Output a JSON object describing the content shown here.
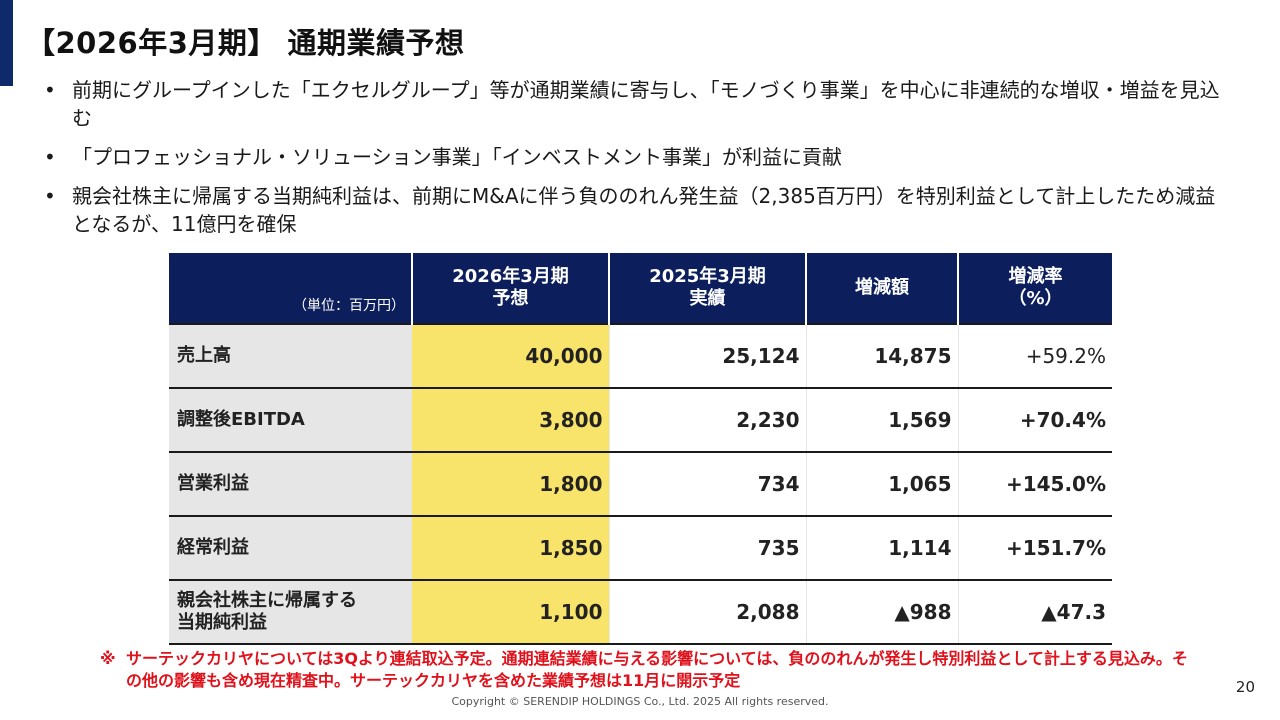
{
  "title": "【2026年3月期】 通期業績予想",
  "bullets": [
    "前期にグループインした「エクセルグループ」等が通期業績に寄与し、「モノづくり事業」を中心に非連続的な増収・増益を見込む",
    "「プロフェッショナル・ソリューション事業」「インベストメント事業」が利益に貢献",
    "親会社株主に帰属する当期純利益は、前期にM&Aに伴う負ののれん発生益（2,385百万円）を特別利益として計上したため減益となるが、11億円を確保"
  ],
  "table": {
    "unit": "（単位：百万円）",
    "headers": [
      "2026年3月期\n予想",
      "2025年3月期\n実績",
      "増減額",
      "増減率\n（%）"
    ],
    "rows": [
      {
        "label": "売上高",
        "forecast": "40,000",
        "actual": "25,124",
        "change": "14,875",
        "rate": "+59.2%"
      },
      {
        "label": "調整後EBITDA",
        "forecast": "3,800",
        "actual": "2,230",
        "change": "1,569",
        "rate": "+70.4%"
      },
      {
        "label": "営業利益",
        "forecast": "1,800",
        "actual": "734",
        "change": "1,065",
        "rate": "+145.0%"
      },
      {
        "label": "経常利益",
        "forecast": "1,850",
        "actual": "735",
        "change": "1,114",
        "rate": "+151.7%"
      },
      {
        "label": "親会社株主に帰属する\n当期純利益",
        "forecast": "1,100",
        "actual": "2,088",
        "change": "▲988",
        "rate": "▲47.3"
      }
    ]
  },
  "note": {
    "mark": "※",
    "text": "サーテックカリヤについては3Qより連結取込予定。通期連結業績に与える影響については、負ののれんが発生し特別利益として計上する見込み。その他の影響も含め現在精査中。サーテックカリヤを含めた業績予想は11月に開示予定"
  },
  "page_number": "20",
  "copyright": "Copyright © SERENDIP HOLDINGS Co., Ltd.  2025 All rights reserved.",
  "colors": {
    "accent": "#0f2a6b",
    "header_bg": "#0c1f5c",
    "highlight": "#f8e36b",
    "label_bg": "#e6e6e6",
    "note": "#e0111b"
  }
}
